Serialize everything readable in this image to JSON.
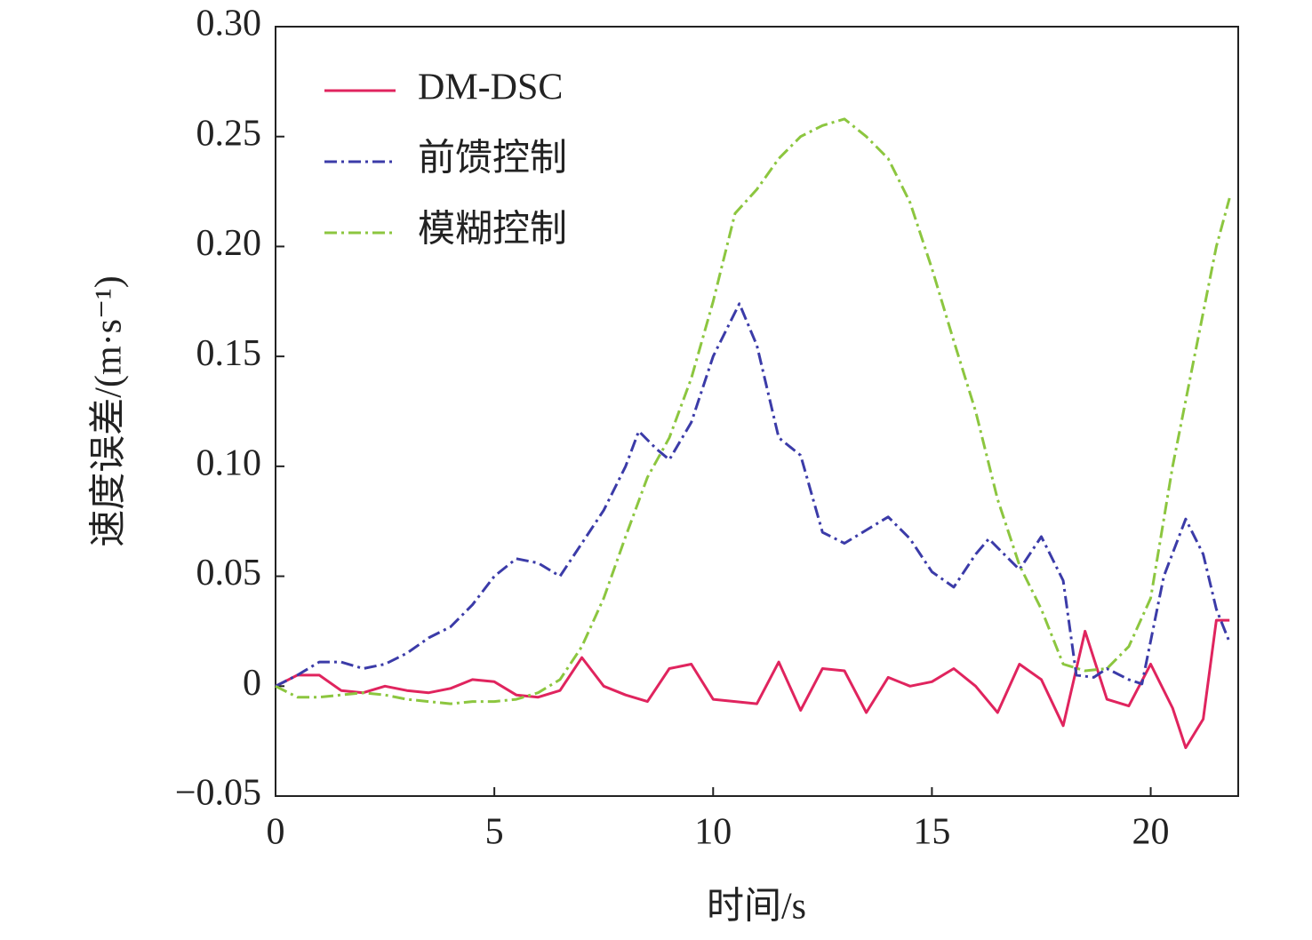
{
  "chart_data": {
    "type": "line",
    "x_label": "时间/s",
    "y_label": "速度误差/(m·s⁻¹)",
    "xlim": [
      0,
      22
    ],
    "ylim": [
      -0.05,
      0.3
    ],
    "xticks": [
      0,
      5,
      10,
      15,
      20
    ],
    "yticks": [
      {
        "value": -0.05,
        "label": "−0.05"
      },
      0,
      0.05,
      {
        "value": 0.1,
        "label": "0.10"
      },
      0.15,
      {
        "value": 0.2,
        "label": "0.20"
      },
      0.25,
      {
        "value": 0.3,
        "label": "0.30"
      }
    ],
    "legend": "upper left",
    "series": [
      {
        "name": "DM-DSC",
        "color": "#e0245e",
        "dash": "solid",
        "x": [
          0,
          0.5,
          1,
          1.5,
          2,
          2.5,
          3,
          3.5,
          4,
          4.5,
          5,
          5.5,
          6,
          6.5,
          7,
          7.5,
          8,
          8.5,
          9,
          9.5,
          10,
          10.5,
          11,
          11.5,
          12,
          12.5,
          13,
          13.5,
          14,
          14.5,
          15,
          15.5,
          16,
          16.5,
          17,
          17.5,
          18,
          18.5,
          19,
          19.5,
          20,
          20.5,
          20.8,
          21.2,
          21.5,
          21.8
        ],
        "values": [
          0,
          0.005,
          0.005,
          -0.002,
          -0.003,
          0,
          -0.002,
          -0.003,
          -0.001,
          0.003,
          0.002,
          -0.004,
          -0.005,
          -0.002,
          0.013,
          0,
          -0.004,
          -0.007,
          0.008,
          0.01,
          -0.006,
          -0.007,
          -0.008,
          0.011,
          -0.011,
          0.008,
          0.007,
          -0.012,
          0.004,
          0,
          0.002,
          0.008,
          0,
          -0.012,
          0.01,
          0.003,
          -0.018,
          0.025,
          -0.006,
          -0.009,
          0.01,
          -0.01,
          -0.028,
          -0.015,
          0.03,
          0.03
        ]
      },
      {
        "name": "前馈控制",
        "color": "#3b3ba8",
        "dash": "dashdot",
        "x": [
          0,
          0.5,
          1,
          1.5,
          2,
          2.5,
          3,
          3.5,
          4,
          4.5,
          5,
          5.5,
          6,
          6.5,
          7,
          7.5,
          8,
          8.3,
          8.7,
          9,
          9.5,
          10,
          10.6,
          11,
          11.5,
          12,
          12.5,
          13,
          13.5,
          14,
          14.5,
          15,
          15.5,
          16,
          16.3,
          17,
          17.5,
          18,
          18.3,
          18.7,
          19,
          19.5,
          19.8,
          20.3,
          20.8,
          21.2,
          21.5,
          21.8
        ],
        "values": [
          0,
          0.005,
          0.011,
          0.011,
          0.008,
          0.01,
          0.015,
          0.022,
          0.027,
          0.037,
          0.05,
          0.058,
          0.056,
          0.05,
          0.065,
          0.08,
          0.1,
          0.116,
          0.108,
          0.103,
          0.12,
          0.15,
          0.174,
          0.155,
          0.113,
          0.105,
          0.07,
          0.065,
          0.071,
          0.077,
          0.067,
          0.052,
          0.045,
          0.06,
          0.067,
          0.053,
          0.068,
          0.048,
          0.005,
          0.004,
          0.008,
          0.003,
          0.001,
          0.05,
          0.076,
          0.06,
          0.035,
          0.02
        ]
      },
      {
        "name": "模糊控制",
        "color": "#8cc63f",
        "dash": "dashdot",
        "x": [
          0,
          0.5,
          1,
          1.5,
          2,
          2.5,
          3,
          3.5,
          4,
          4.5,
          5,
          5.5,
          6,
          6.5,
          7,
          7.5,
          8,
          8.5,
          9,
          9.5,
          10,
          10.5,
          11,
          11.5,
          12,
          12.5,
          13,
          13.5,
          14,
          14.5,
          15,
          15.5,
          16,
          16.5,
          17,
          17.5,
          18,
          18.5,
          19,
          19.5,
          20,
          20.5,
          21,
          21.5,
          21.8
        ],
        "values": [
          0,
          -0.005,
          -0.005,
          -0.004,
          -0.003,
          -0.004,
          -0.006,
          -0.007,
          -0.008,
          -0.007,
          -0.007,
          -0.006,
          -0.003,
          0.003,
          0.018,
          0.04,
          0.068,
          0.095,
          0.113,
          0.14,
          0.175,
          0.215,
          0.226,
          0.24,
          0.25,
          0.255,
          0.258,
          0.25,
          0.24,
          0.22,
          0.19,
          0.157,
          0.125,
          0.085,
          0.055,
          0.035,
          0.01,
          0.007,
          0.008,
          0.018,
          0.04,
          0.1,
          0.15,
          0.2,
          0.222
        ]
      }
    ]
  }
}
